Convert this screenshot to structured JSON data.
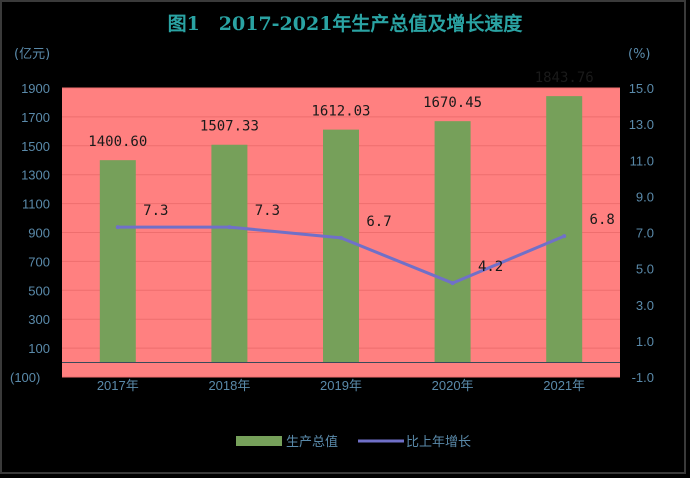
{
  "colors": {
    "background": "#000000",
    "plot_area": "#ff8080",
    "bar": "#76a05a",
    "line": "#7070c8",
    "title": "#2aa3a3",
    "axis_text": "#5a8aaa",
    "grid": "#ee6e6e"
  },
  "chart_data": {
    "type": "bar",
    "title": "图1　2017-2021年生产总值及增长速度",
    "categories": [
      "2017年",
      "2018年",
      "2019年",
      "2020年",
      "2021年"
    ],
    "series": [
      {
        "name": "生产总值",
        "type": "bar",
        "axis": "left",
        "values": [
          1400.6,
          1507.33,
          1612.03,
          1670.45,
          1843.76
        ],
        "labels": [
          "1400.60",
          "1507.33",
          "1612.03",
          "1670.45",
          "1843.76"
        ]
      },
      {
        "name": "比上年增长",
        "type": "line",
        "axis": "right",
        "values": [
          7.3,
          7.3,
          6.7,
          4.2,
          6.8
        ],
        "labels": [
          "7.3",
          "7.3",
          "6.7",
          "4.2",
          "6.8"
        ]
      }
    ],
    "left_axis": {
      "unit": "(亿元)",
      "ylim": [
        -100,
        1900
      ],
      "ticks": [
        1900,
        1700,
        1500,
        1300,
        1100,
        900,
        700,
        500,
        300,
        100,
        0,
        -100
      ],
      "tick_labels": [
        "1900",
        "1700",
        "1500",
        "1300",
        "1100",
        "900",
        "700",
        "500",
        "300",
        "100",
        "",
        "(100)"
      ]
    },
    "right_axis": {
      "unit": "(%)",
      "ylim": [
        -1.0,
        15.0
      ],
      "ticks": [
        15.0,
        13.0,
        11.0,
        9.0,
        7.0,
        5.0,
        3.0,
        1.0,
        -1.0
      ],
      "tick_labels": [
        "15.0",
        "13.0",
        "11.0",
        "9.0",
        "7.0",
        "5.0",
        "3.0",
        "1.0",
        "-1.0"
      ]
    },
    "grid": true,
    "legend": "bottom"
  }
}
